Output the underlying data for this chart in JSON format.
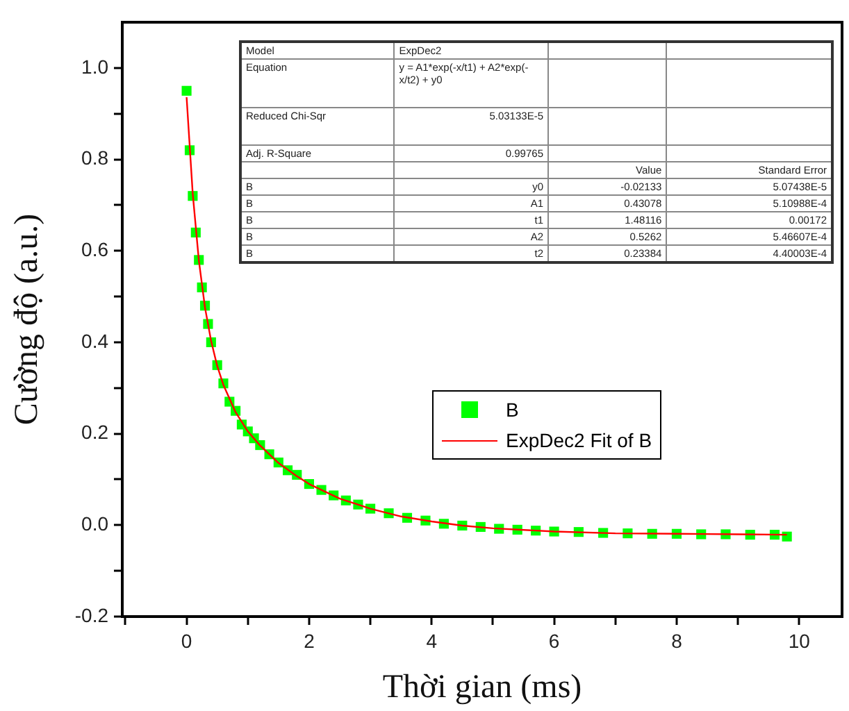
{
  "chart_data": {
    "type": "scatter",
    "xlabel": "Thời gian (ms)",
    "ylabel": "Cường độ (a.u.)",
    "xlim": [
      -1.05,
      10.7
    ],
    "ylim": [
      -0.2,
      1.1
    ],
    "xticks": [
      {
        "value": -1,
        "label": null
      },
      0,
      {
        "value": 1,
        "label": null
      },
      2,
      {
        "value": 3,
        "label": null
      },
      4,
      {
        "value": 5,
        "label": null
      },
      6,
      {
        "value": 7,
        "label": null
      },
      8,
      {
        "value": 9,
        "label": null
      },
      10
    ],
    "yticks": [
      -0.2,
      {
        "value": -0.1,
        "label": null
      },
      {
        "value": 0,
        "label": "0.0"
      },
      {
        "value": 0.1,
        "label": null
      },
      0.2,
      {
        "value": 0.3,
        "label": null
      },
      0.4,
      {
        "value": 0.5,
        "label": null
      },
      0.6,
      {
        "value": 0.7,
        "label": null
      },
      0.8,
      {
        "value": 0.9,
        "label": null
      },
      {
        "value": 1,
        "label": "1.0"
      }
    ],
    "grid": false,
    "legend": "right",
    "series": [
      {
        "name": "B",
        "marker": "square",
        "color": "#00ff00",
        "x": [
          0,
          0.05,
          0.1,
          0.15,
          0.2,
          0.25,
          0.3,
          0.35,
          0.4,
          0.5,
          0.6,
          0.7,
          0.8,
          0.9,
          1.0,
          1.1,
          1.2,
          1.35,
          1.5,
          1.65,
          1.8,
          2.0,
          2.2,
          2.4,
          2.6,
          2.8,
          3.0,
          3.3,
          3.6,
          3.9,
          4.2,
          4.5,
          4.8,
          5.1,
          5.4,
          5.7,
          6.0,
          6.4,
          6.8,
          7.2,
          7.6,
          8.0,
          8.4,
          8.8,
          9.2,
          9.6,
          9.8
        ],
        "values": [
          0.95,
          0.82,
          0.72,
          0.64,
          0.58,
          0.52,
          0.48,
          0.44,
          0.4,
          0.35,
          0.31,
          0.27,
          0.25,
          0.22,
          0.205,
          0.19,
          0.175,
          0.155,
          0.137,
          0.12,
          0.11,
          0.09,
          0.077,
          0.065,
          0.054,
          0.045,
          0.036,
          0.026,
          0.016,
          0.01,
          0.003,
          -0.001,
          -0.004,
          -0.008,
          -0.01,
          -0.012,
          -0.014,
          -0.015,
          -0.017,
          -0.018,
          -0.019,
          -0.019,
          -0.02,
          -0.02,
          -0.021,
          -0.021,
          -0.025
        ]
      },
      {
        "name": "ExpDec2 Fit of B",
        "type": "line",
        "marker": "none",
        "line_style": "solid",
        "color": "#ff0000",
        "x": [
          0,
          0.1,
          0.2,
          0.3,
          0.4,
          0.5,
          0.6,
          0.8,
          1.0,
          1.2,
          1.5,
          1.8,
          2.0,
          2.5,
          3,
          3.5,
          4,
          4.5,
          5,
          6,
          7,
          8,
          9,
          9.8
        ],
        "values": [
          0.936,
          0.725,
          0.579,
          0.476,
          0.403,
          0.348,
          0.307,
          0.247,
          0.205,
          0.174,
          0.136,
          0.107,
          0.09,
          0.058,
          0.036,
          0.019,
          0.008,
          -0.001,
          -0.007,
          -0.014,
          -0.018,
          -0.019,
          -0.02,
          -0.021
        ]
      }
    ],
    "annotations": [
      "Model",
      "ExpDec2",
      "Equation",
      "y = A1*exp(-x/t1) + A2*exp(-x/t2) + y0",
      "Reduced Chi-Sqr",
      "5.03133E-5",
      "Adj. R-Square",
      "0.99765",
      "Value",
      "Standard Error",
      "B",
      "y0",
      "-0.02133",
      "5.07438E-5",
      "B",
      "A1",
      "0.43078",
      "5.10988E-4",
      "B",
      "t1",
      "1.48116",
      "0.00172",
      "B",
      "A2",
      "0.5262",
      "5.46607E-4",
      "B",
      "t2",
      "0.23384",
      "4.40003E-4"
    ]
  }
}
